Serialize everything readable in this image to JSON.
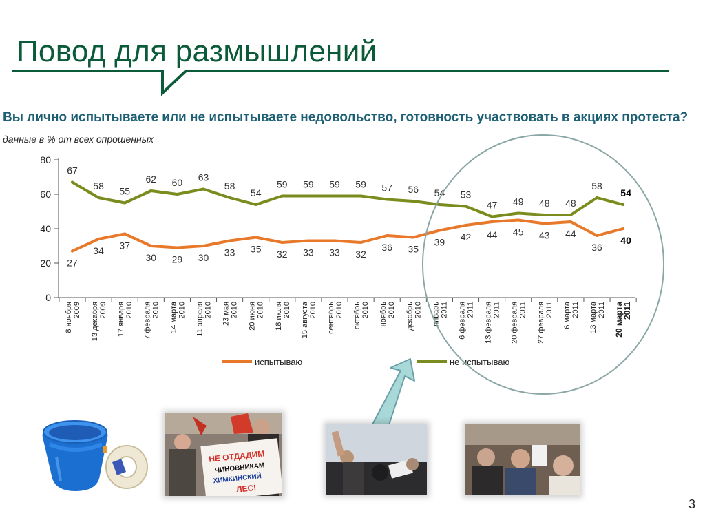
{
  "slide": {
    "title": "Повод для размышлений",
    "question": "Вы лично испытываете или не испытываете недовольство, готовность участвовать в акциях протеста?",
    "subtitle": "данные в % от всех опрошенных",
    "page_number": "3",
    "accent_color": "#0b5a3a"
  },
  "chart_data": {
    "type": "line",
    "x": [
      "8 ноября 2009",
      "13 декабря 2009",
      "17 января 2010",
      "7 февраля 2010",
      "14 марта 2010",
      "11 апреля 2010",
      "23 мая 2010",
      "20 июня 2010",
      "18 июля 2010",
      "15 августа 2010",
      "сентябрь 2010",
      "октябрь 2010",
      "ноябрь 2010",
      "декабрь 2010",
      "январь 2011",
      "6 февраля 2011",
      "13 февраля 2011",
      "20 февраля 2011",
      "27 февраля 2011",
      "6 марта 2011",
      "13 марта 2011",
      "20 марта 2011"
    ],
    "x_tick_lines": [
      [
        "8 ноября",
        "2009"
      ],
      [
        "13 декабря",
        "2009"
      ],
      [
        "17 января",
        "2010"
      ],
      [
        "7 февраля",
        "2010"
      ],
      [
        "14 марта",
        "2010"
      ],
      [
        "11 апреля",
        "2010"
      ],
      [
        "23 мая",
        "2010"
      ],
      [
        "20 июня",
        "2010"
      ],
      [
        "18 июля",
        "2010"
      ],
      [
        "15 августа",
        "2010"
      ],
      [
        "сентябрь",
        "2010"
      ],
      [
        "октябрь",
        "2010"
      ],
      [
        "ноябрь",
        "2010"
      ],
      [
        "декабрь",
        "2010"
      ],
      [
        "январь",
        "2011"
      ],
      [
        "6 февраля",
        "2011"
      ],
      [
        "13 февраля",
        "2011"
      ],
      [
        "20 февраля",
        "2011"
      ],
      [
        "27 февраля",
        "2011"
      ],
      [
        "6 марта",
        "2011"
      ],
      [
        "13 марта",
        "2011"
      ],
      [
        "20 марта",
        "2011"
      ]
    ],
    "series": [
      {
        "name": "испытываю",
        "color": "#e8792a",
        "values": [
          27,
          34,
          37,
          30,
          29,
          30,
          33,
          35,
          32,
          33,
          33,
          32,
          36,
          35,
          39,
          42,
          44,
          45,
          43,
          44,
          36,
          40
        ]
      },
      {
        "name": "не испытываю",
        "color": "#7a8c1e",
        "values": [
          67,
          58,
          55,
          62,
          60,
          63,
          58,
          54,
          59,
          59,
          59,
          59,
          57,
          56,
          54,
          53,
          47,
          49,
          48,
          48,
          58,
          54
        ]
      }
    ],
    "ylim": [
      0,
      80
    ],
    "yticks": [
      0,
      20,
      40,
      60,
      80
    ],
    "grid": false,
    "legend": "bottom",
    "last_point_bold": true
  },
  "images": {
    "photo1_sign_lines": [
      "НЕ ОТДАДИМ",
      "ЧИНОВНИКАМ",
      "ХИМКИНСКИЙ",
      "ЛЕС!"
    ]
  },
  "icons": [
    "bucket-icon",
    "tape-roll-icon",
    "arrow-up-icon"
  ]
}
